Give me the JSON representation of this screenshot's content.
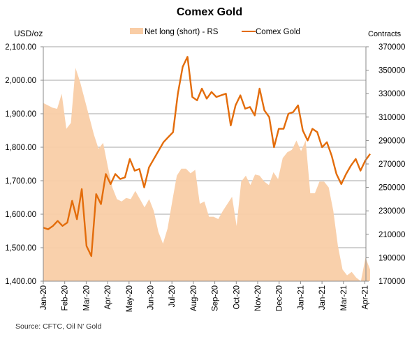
{
  "chart_data": {
    "type": "area+line",
    "title": "Comex Gold",
    "ylabel_left": "USD/oz",
    "ylabel_right": "Contracts",
    "source": "Source: CFTC, Oil N' Gold",
    "ylim_left": [
      1400,
      2100
    ],
    "ylim_right": [
      170000,
      370000
    ],
    "left_ticks": [
      "1,400.00",
      "1,500.00",
      "1,600.00",
      "1,700.00",
      "1,800.00",
      "1,900.00",
      "2,000.00",
      "2,100.00"
    ],
    "right_ticks": [
      "170000",
      "190000",
      "210000",
      "230000",
      "250000",
      "270000",
      "290000",
      "310000",
      "330000",
      "350000",
      "370000"
    ],
    "x_ticks": [
      "Jan-20",
      "Feb-20",
      "Mar-20",
      "Apr-20",
      "May-20",
      "Jun-20",
      "Jul-20",
      "Aug-20",
      "Sep-20",
      "Oct-20",
      "Nov-20",
      "Dec-20",
      "Jan-21",
      "Jan-21",
      "Mar-21",
      "Apr-21"
    ],
    "grid": true,
    "legend_position": "top",
    "series": [
      {
        "name": "Net long (short) - RS",
        "type": "area",
        "axis": "right",
        "color": "#f9cda6",
        "values": [
          322000,
          320000,
          318000,
          317000,
          330000,
          300000,
          305000,
          352000,
          340000,
          325000,
          310000,
          295000,
          283000,
          288000,
          268000,
          250000,
          240000,
          238000,
          241000,
          240000,
          247000,
          240000,
          233000,
          240000,
          230000,
          212000,
          202000,
          215000,
          238000,
          260000,
          266000,
          266000,
          262000,
          265000,
          236000,
          238000,
          225000,
          225000,
          223000,
          230000,
          236000,
          242000,
          217000,
          255000,
          260000,
          252000,
          261000,
          260000,
          255000,
          252000,
          263000,
          257000,
          275000,
          280000,
          282000,
          290000,
          281000,
          290000,
          245000,
          245000,
          255000,
          255000,
          250000,
          230000,
          200000,
          180000,
          175000,
          178000,
          173000,
          168000,
          190000,
          180000
        ]
      },
      {
        "name": "Comex Gold",
        "type": "line",
        "axis": "left",
        "color": "#e36c0a",
        "values": [
          1560,
          1555,
          1565,
          1580,
          1565,
          1575,
          1640,
          1585,
          1675,
          1505,
          1475,
          1660,
          1630,
          1720,
          1690,
          1720,
          1705,
          1710,
          1765,
          1730,
          1735,
          1680,
          1740,
          1765,
          1790,
          1815,
          1830,
          1845,
          1960,
          2040,
          2070,
          1950,
          1940,
          1975,
          1945,
          1965,
          1950,
          1955,
          1960,
          1865,
          1925,
          1955,
          1915,
          1920,
          1895,
          1975,
          1910,
          1890,
          1800,
          1855,
          1855,
          1900,
          1905,
          1925,
          1850,
          1820,
          1855,
          1845,
          1800,
          1815,
          1775,
          1720,
          1690,
          1720,
          1745,
          1765,
          1730,
          1760,
          1780
        ]
      }
    ]
  }
}
